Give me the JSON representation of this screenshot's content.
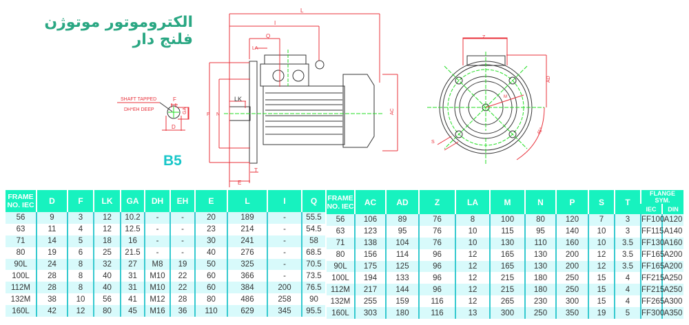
{
  "title": "الکتروموتور موتوژن فلنج دار",
  "mounting": "B5",
  "drawing": {
    "shaft_note_1": "SHAFT TAPPED",
    "shaft_note_2": "DH*EH DEEP",
    "labels": {
      "F": "F",
      "GA": "GA",
      "D": "D",
      "L": "L",
      "I": "I",
      "Q": "Q",
      "LA": "LA",
      "LK": "LK",
      "P": "P",
      "N": "N",
      "AC": "AC",
      "T": "T",
      "E": "E",
      "Z": "Z",
      "AD": "AD",
      "M": "M",
      "S": "S",
      "angle": "45°"
    },
    "colors": {
      "dimension": "#e8303a",
      "centerline": "#22dd22",
      "outline": "#333333"
    }
  },
  "colors": {
    "header": "#17f2bf",
    "row_alt": "#d8fafb",
    "divider": "#35c9cf",
    "title": "#2aa783",
    "b5": "#18c6c9"
  },
  "table_left": {
    "headers": [
      "FRAME NO. IEC",
      "D",
      "F",
      "LK",
      "GA",
      "DH",
      "EH",
      "E",
      "L",
      "I",
      "Q"
    ],
    "rows": [
      [
        "56",
        "9",
        "3",
        "12",
        "10.2",
        "-",
        "-",
        "20",
        "189",
        "-",
        "55.5"
      ],
      [
        "63",
        "11",
        "4",
        "12",
        "12.5",
        "-",
        "-",
        "23",
        "214",
        "-",
        "54.5"
      ],
      [
        "71",
        "14",
        "5",
        "18",
        "16",
        "-",
        "-",
        "30",
        "241",
        "-",
        "58"
      ],
      [
        "80",
        "19",
        "6",
        "25",
        "21.5",
        "-",
        "-",
        "40",
        "276",
        "-",
        "68.5"
      ],
      [
        "90L",
        "24",
        "8",
        "32",
        "27",
        "M8",
        "19",
        "50",
        "325",
        "-",
        "70.5"
      ],
      [
        "100L",
        "28",
        "8",
        "40",
        "31",
        "M10",
        "22",
        "60",
        "366",
        "-",
        "73.5"
      ],
      [
        "112M",
        "28",
        "8",
        "40",
        "31",
        "M10",
        "22",
        "60",
        "384",
        "200",
        "76.5"
      ],
      [
        "132M",
        "38",
        "10",
        "56",
        "41",
        "M12",
        "28",
        "80",
        "486",
        "258",
        "90"
      ],
      [
        "160L",
        "42",
        "12",
        "80",
        "45",
        "M16",
        "36",
        "110",
        "629",
        "345",
        "95.5"
      ]
    ]
  },
  "table_right": {
    "headers": [
      "FRAME NO. IEC",
      "AC",
      "AD",
      "Z",
      "LA",
      "M",
      "N",
      "P",
      "S",
      "T"
    ],
    "flange_header": "FLANGE SYM.",
    "flange_sub": [
      "IEC",
      "DIN"
    ],
    "rows": [
      [
        "56",
        "106",
        "89",
        "76",
        "8",
        "100",
        "80",
        "120",
        "7",
        "3",
        "FF100",
        "A120"
      ],
      [
        "63",
        "123",
        "95",
        "76",
        "10",
        "115",
        "95",
        "140",
        "10",
        "3",
        "FF115",
        "A140"
      ],
      [
        "71",
        "138",
        "104",
        "76",
        "10",
        "130",
        "110",
        "160",
        "10",
        "3.5",
        "FF130",
        "A160"
      ],
      [
        "80",
        "156",
        "114",
        "96",
        "12",
        "165",
        "130",
        "200",
        "12",
        "3.5",
        "FF165",
        "A200"
      ],
      [
        "90L",
        "175",
        "125",
        "96",
        "12",
        "165",
        "130",
        "200",
        "12",
        "3.5",
        "FF165",
        "A200"
      ],
      [
        "100L",
        "194",
        "133",
        "96",
        "12",
        "215",
        "180",
        "250",
        "15",
        "4",
        "FF215",
        "A250"
      ],
      [
        "112M",
        "217",
        "144",
        "96",
        "12",
        "215",
        "180",
        "250",
        "15",
        "4",
        "FF215",
        "A250"
      ],
      [
        "132M",
        "255",
        "159",
        "116",
        "12",
        "265",
        "230",
        "300",
        "15",
        "4",
        "FF265",
        "A300"
      ],
      [
        "160L",
        "303",
        "180",
        "116",
        "13",
        "300",
        "250",
        "350",
        "19",
        "5",
        "FF300",
        "A350"
      ]
    ]
  }
}
